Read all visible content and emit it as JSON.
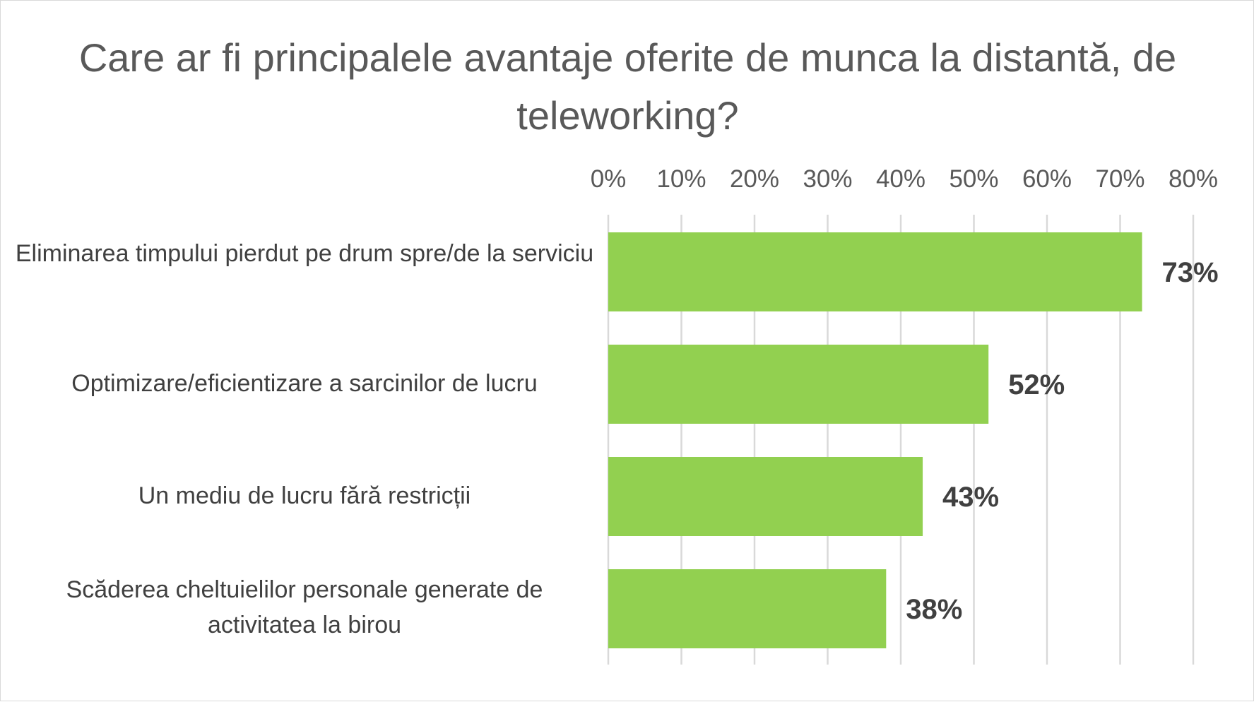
{
  "chart_data": {
    "type": "bar",
    "orientation": "horizontal",
    "title": "Care ar fi principalele avantaje oferite de munca la distantă, de teleworking?",
    "categories": [
      "Eliminarea timpului pierdut pe drum spre/de la serviciu",
      "Optimizare/eficientizare a sarcinilor de lucru",
      "Un mediu de lucru fără restricții",
      "Scăderea cheltuielilor personale generate de activitatea la birou"
    ],
    "values": [
      73,
      52,
      43,
      38
    ],
    "data_labels": [
      "73%",
      "52%",
      "43%",
      "38%"
    ],
    "x_ticks": [
      "0%",
      "10%",
      "20%",
      "30%",
      "40%",
      "50%",
      "60%",
      "70%",
      "80%"
    ],
    "xlim": [
      0,
      80
    ],
    "axis_position": "top",
    "grid": true,
    "legend": "none",
    "bar_color": "#92d050",
    "grid_color": "#d9d9d9"
  }
}
